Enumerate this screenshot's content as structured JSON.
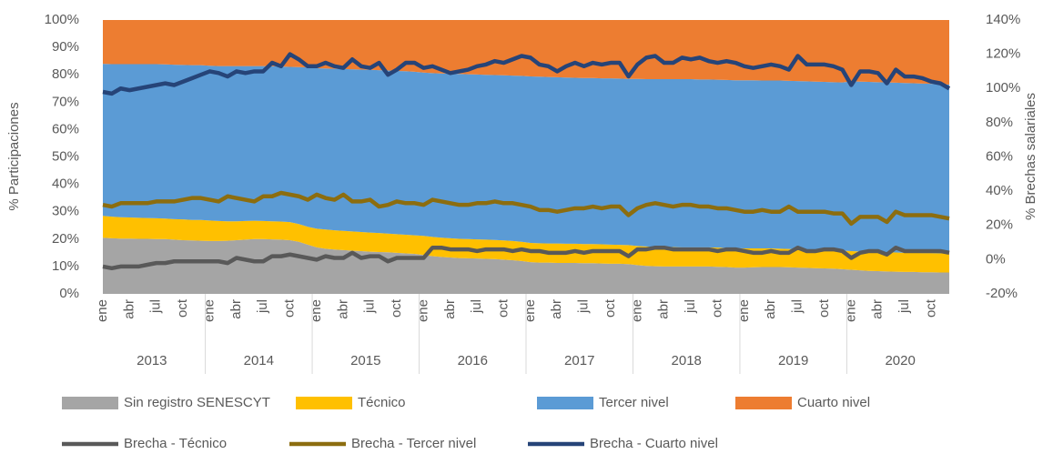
{
  "chart_data": {
    "type": "stacked_area_line",
    "y_label": "% Participaciones",
    "y2_label": "% Brechas salariales",
    "categories": [
      "ene",
      null,
      null,
      "abr",
      null,
      null,
      "jul",
      null,
      null,
      "oct",
      null,
      null,
      "ene",
      null,
      null,
      "abr",
      null,
      null,
      "jul",
      null,
      null,
      "oct",
      null,
      null,
      "ene",
      null,
      null,
      "abr",
      null,
      null,
      "jul",
      null,
      null,
      "oct",
      null,
      null,
      "ene",
      null,
      null,
      "abr",
      null,
      null,
      "jul",
      null,
      null,
      "oct",
      null,
      null,
      "ene",
      null,
      null,
      "abr",
      null,
      null,
      "jul",
      null,
      null,
      "oct",
      null,
      null,
      "ene",
      null,
      null,
      "abr",
      null,
      null,
      "jul",
      null,
      null,
      "oct",
      null,
      null,
      "ene",
      null,
      null,
      "abr",
      null,
      null,
      "jul",
      null,
      null,
      "oct",
      null,
      null,
      "ene",
      null,
      null,
      "abr",
      null,
      null,
      "jul",
      null,
      null,
      "oct",
      null,
      null
    ],
    "years": [
      "2013",
      "2014",
      "2015",
      "2016",
      "2017",
      "2018",
      "2019",
      "2020"
    ],
    "ylim": [
      0,
      100
    ],
    "yticks": [
      {
        "value": 0,
        "label": "0%"
      },
      {
        "value": 10,
        "label": "10%"
      },
      {
        "value": 20,
        "label": "20%"
      },
      {
        "value": 30,
        "label": "30%"
      },
      {
        "value": 40,
        "label": "40%"
      },
      {
        "value": 50,
        "label": "50%"
      },
      {
        "value": 60,
        "label": "60%"
      },
      {
        "value": 70,
        "label": "70%"
      },
      {
        "value": 80,
        "label": "80%"
      },
      {
        "value": 90,
        "label": "90%"
      },
      {
        "value": 100,
        "label": "100%"
      }
    ],
    "y2lim": [
      -20,
      140
    ],
    "y2ticks": [
      {
        "value": -20,
        "label": "-20%"
      },
      {
        "value": 0,
        "label": "0%"
      },
      {
        "value": 20,
        "label": "20%"
      },
      {
        "value": 40,
        "label": "40%"
      },
      {
        "value": 60,
        "label": "60%"
      },
      {
        "value": 80,
        "label": "80%"
      },
      {
        "value": 100,
        "label": "100%"
      },
      {
        "value": 120,
        "label": "120%"
      },
      {
        "value": 140,
        "label": "140%"
      }
    ],
    "series": [
      {
        "name": "Sin registro SENESCYT",
        "kind": "area",
        "color": "#a5a5a5",
        "values": [
          20.5,
          20.3,
          20.2,
          20.2,
          20.1,
          20.1,
          20.0,
          20.0,
          19.8,
          19.6,
          19.5,
          19.4,
          19.3,
          19.3,
          19.4,
          19.6,
          19.8,
          20.0,
          20.0,
          19.9,
          19.8,
          19.6,
          19.0,
          18.0,
          17.0,
          16.5,
          16.2,
          16.0,
          15.8,
          15.6,
          15.4,
          15.3,
          15.2,
          15.0,
          14.8,
          14.6,
          14.2,
          13.8,
          13.5,
          13.3,
          13.1,
          13.0,
          12.9,
          12.8,
          12.7,
          12.5,
          12.3,
          12.0,
          11.6,
          11.4,
          11.4,
          11.3,
          11.3,
          11.3,
          11.2,
          11.2,
          11.1,
          11.0,
          11.0,
          10.9,
          10.5,
          10.2,
          10.1,
          10.0,
          10.0,
          10.0,
          10.0,
          10.0,
          10.0,
          9.9,
          9.8,
          9.6,
          9.6,
          9.7,
          9.8,
          9.8,
          9.8,
          9.7,
          9.6,
          9.5,
          9.4,
          9.3,
          9.2,
          9.0,
          8.8,
          8.6,
          8.4,
          8.3,
          8.2,
          8.1,
          8.0,
          8.0,
          7.9,
          7.9,
          7.8,
          7.8
        ]
      },
      {
        "name": "Técnico",
        "kind": "area",
        "color": "#ffc000",
        "values": [
          8.0,
          7.9,
          7.8,
          7.7,
          7.7,
          7.6,
          7.6,
          7.5,
          7.5,
          7.6,
          7.5,
          7.6,
          7.5,
          7.3,
          7.1,
          6.9,
          6.8,
          6.7,
          6.6,
          6.6,
          6.6,
          6.6,
          6.5,
          6.5,
          6.8,
          7.0,
          7.0,
          7.0,
          7.0,
          7.0,
          7.0,
          6.9,
          6.8,
          6.8,
          6.8,
          6.8,
          7.0,
          7.0,
          7.0,
          7.0,
          7.0,
          7.0,
          7.0,
          7.0,
          7.0,
          7.0,
          7.0,
          7.0,
          7.0,
          7.1,
          7.0,
          7.1,
          7.0,
          7.0,
          7.0,
          7.0,
          7.0,
          7.0,
          6.9,
          6.9,
          7.0,
          7.1,
          7.1,
          7.1,
          7.1,
          7.0,
          7.0,
          7.0,
          7.0,
          7.0,
          7.0,
          7.1,
          7.0,
          6.9,
          6.8,
          6.8,
          6.7,
          6.7,
          6.7,
          6.7,
          6.7,
          6.7,
          6.7,
          6.8,
          6.8,
          6.9,
          7.0,
          7.0,
          7.0,
          7.0,
          7.0,
          7.0,
          7.0,
          7.0,
          7.0,
          7.0
        ]
      },
      {
        "name": "Tercer nivel",
        "kind": "area",
        "color": "#5b9bd5",
        "values": [
          55.5,
          55.7,
          55.9,
          56.0,
          56.1,
          56.2,
          56.3,
          56.3,
          56.4,
          56.4,
          56.5,
          56.5,
          56.5,
          56.6,
          56.7,
          56.7,
          56.6,
          56.5,
          56.6,
          56.6,
          56.6,
          56.7,
          57.3,
          58.2,
          58.6,
          58.8,
          59.0,
          59.1,
          59.2,
          59.3,
          59.4,
          59.5,
          59.6,
          59.6,
          59.7,
          59.7,
          59.6,
          59.8,
          60.0,
          60.1,
          60.2,
          60.2,
          60.2,
          60.2,
          60.2,
          60.3,
          60.4,
          60.6,
          60.8,
          60.8,
          60.8,
          60.7,
          60.7,
          60.6,
          60.6,
          60.6,
          60.6,
          60.7,
          60.7,
          60.7,
          61.0,
          61.1,
          61.2,
          61.3,
          61.3,
          61.4,
          61.4,
          61.3,
          61.3,
          61.3,
          61.3,
          61.3,
          61.4,
          61.4,
          61.3,
          61.3,
          61.4,
          61.4,
          61.4,
          61.4,
          61.4,
          61.4,
          61.4,
          61.4,
          62.0,
          62.0,
          62.0,
          62.0,
          62.0,
          62.0,
          62.0,
          61.9,
          61.9,
          61.8,
          61.8,
          61.6
        ]
      },
      {
        "name": "Cuarto nivel",
        "kind": "area",
        "color": "#ed7d31",
        "values": [
          16.0,
          16.1,
          16.1,
          16.1,
          16.1,
          16.1,
          16.1,
          16.2,
          16.3,
          16.4,
          16.5,
          16.5,
          16.7,
          16.8,
          16.8,
          16.8,
          16.8,
          16.8,
          16.8,
          16.9,
          17.0,
          17.1,
          17.2,
          17.3,
          17.6,
          17.7,
          17.8,
          17.9,
          18.0,
          18.1,
          18.2,
          18.3,
          18.4,
          18.6,
          18.7,
          18.9,
          19.2,
          19.4,
          19.5,
          19.6,
          19.7,
          19.8,
          19.9,
          20.0,
          20.1,
          20.2,
          20.3,
          20.4,
          20.6,
          20.7,
          20.8,
          20.9,
          21.0,
          21.1,
          21.2,
          21.2,
          21.3,
          21.3,
          21.4,
          21.5,
          21.5,
          21.6,
          21.6,
          21.6,
          21.6,
          21.6,
          21.6,
          21.7,
          21.7,
          21.8,
          21.9,
          22.0,
          22.0,
          22.0,
          22.1,
          22.1,
          22.1,
          22.2,
          22.3,
          22.4,
          22.5,
          22.6,
          22.7,
          22.8,
          22.4,
          22.5,
          22.6,
          22.7,
          22.8,
          22.9,
          23.0,
          23.1,
          23.2,
          23.3,
          23.4,
          23.6
        ]
      },
      {
        "name": "Brecha - Técnico",
        "kind": "line",
        "axis": "y2",
        "color": "#595959",
        "values": [
          -4,
          -5,
          -4,
          -4,
          -4,
          -3,
          -2,
          -2,
          -1,
          -1,
          -1,
          -1,
          -1,
          -1,
          -2,
          1,
          0,
          -1,
          -1,
          2,
          2,
          3,
          2,
          1,
          0,
          2,
          1,
          1,
          4,
          1,
          2,
          2,
          -1,
          1,
          1,
          1,
          1,
          7,
          7,
          6,
          6,
          6,
          5,
          6,
          6,
          6,
          5,
          6,
          5,
          5,
          4,
          4,
          4,
          5,
          4,
          5,
          5,
          5,
          5,
          2,
          6,
          6,
          7,
          7,
          6,
          6,
          6,
          6,
          6,
          5,
          6,
          6,
          5,
          4,
          4,
          5,
          4,
          4,
          7,
          5,
          5,
          6,
          6,
          5,
          1,
          4,
          5,
          5,
          3,
          7,
          5,
          5,
          5,
          5,
          5,
          4
        ]
      },
      {
        "name": "Brecha - Tercer nivel",
        "kind": "line",
        "axis": "y2",
        "color": "#8c6d0f",
        "values": [
          32,
          31,
          33,
          33,
          33,
          33,
          34,
          34,
          34,
          35,
          36,
          36,
          35,
          34,
          37,
          36,
          35,
          34,
          37,
          37,
          39,
          38,
          37,
          35,
          38,
          36,
          35,
          38,
          34,
          34,
          35,
          31,
          32,
          34,
          33,
          33,
          32,
          35,
          34,
          33,
          32,
          32,
          33,
          33,
          34,
          33,
          33,
          32,
          31,
          29,
          29,
          28,
          29,
          30,
          30,
          31,
          30,
          31,
          31,
          26,
          30,
          32,
          33,
          32,
          31,
          32,
          32,
          31,
          31,
          30,
          30,
          29,
          28,
          28,
          29,
          28,
          28,
          31,
          28,
          28,
          28,
          28,
          27,
          27,
          21,
          25,
          25,
          25,
          22,
          28,
          26,
          26,
          26,
          26,
          25,
          24
        ]
      },
      {
        "name": "Brecha - Cuarto nivel",
        "kind": "line",
        "axis": "y2",
        "color": "#264478",
        "values": [
          98,
          97,
          100,
          99,
          100,
          101,
          102,
          103,
          102,
          104,
          106,
          108,
          110,
          109,
          107,
          110,
          109,
          110,
          110,
          115,
          113,
          120,
          117,
          113,
          113,
          115,
          113,
          112,
          117,
          113,
          112,
          115,
          108,
          111,
          115,
          115,
          112,
          113,
          111,
          109,
          110,
          111,
          113,
          114,
          116,
          115,
          117,
          119,
          118,
          114,
          113,
          110,
          113,
          115,
          113,
          115,
          114,
          115,
          115,
          107,
          114,
          118,
          119,
          115,
          115,
          118,
          117,
          118,
          116,
          115,
          116,
          115,
          113,
          112,
          113,
          114,
          113,
          111,
          119,
          114,
          114,
          114,
          113,
          111,
          102,
          110,
          110,
          109,
          103,
          111,
          107,
          107,
          106,
          104,
          103,
          100
        ]
      }
    ]
  }
}
